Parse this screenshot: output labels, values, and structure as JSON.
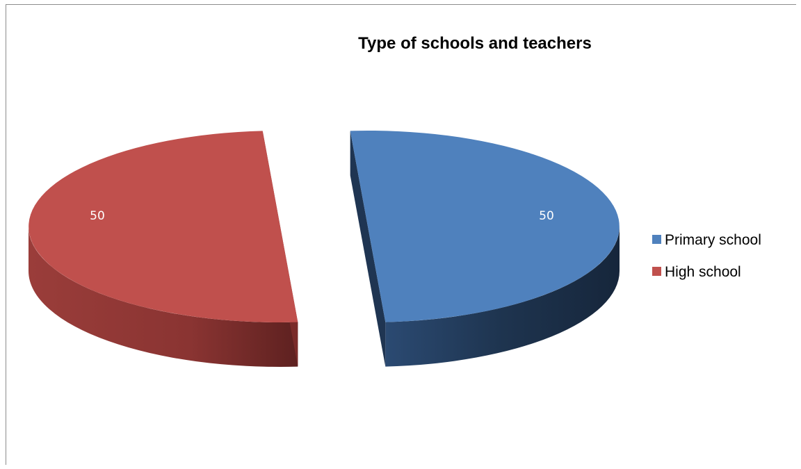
{
  "chart_data": {
    "type": "pie",
    "title": "Type of schools and teachers",
    "categories": [
      "Primary school",
      "High school"
    ],
    "values": [
      50,
      50
    ],
    "data_labels": [
      "50",
      "50"
    ],
    "colors": [
      "#4f81bd",
      "#c0504d"
    ],
    "side_colors": [
      "#1f3552",
      "#7a2b29"
    ],
    "style": "3d-exploded",
    "legend": "right"
  }
}
